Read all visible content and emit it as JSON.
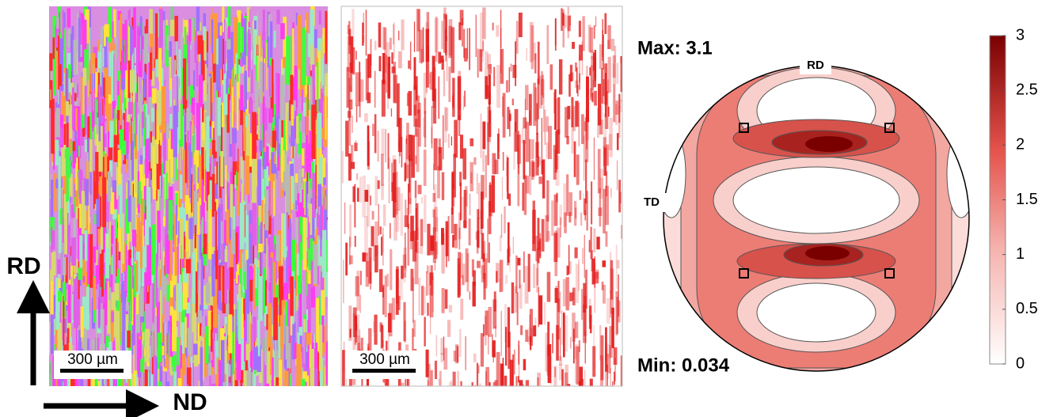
{
  "axes": {
    "vertical": "RD",
    "horizontal": "ND"
  },
  "ebsd_map": {
    "scale_bar": "300 µm"
  },
  "kam_map": {
    "scale_bar": "300 µm"
  },
  "pole_figure": {
    "max_label": "Max: 3.1",
    "min_label": "Min: 0.034",
    "top_label": "RD",
    "left_label": "TD"
  },
  "colorbar": {
    "lim": [
      0,
      3
    ],
    "ticks": [
      0,
      0.5,
      1,
      1.5,
      2,
      2.5,
      3
    ]
  }
}
